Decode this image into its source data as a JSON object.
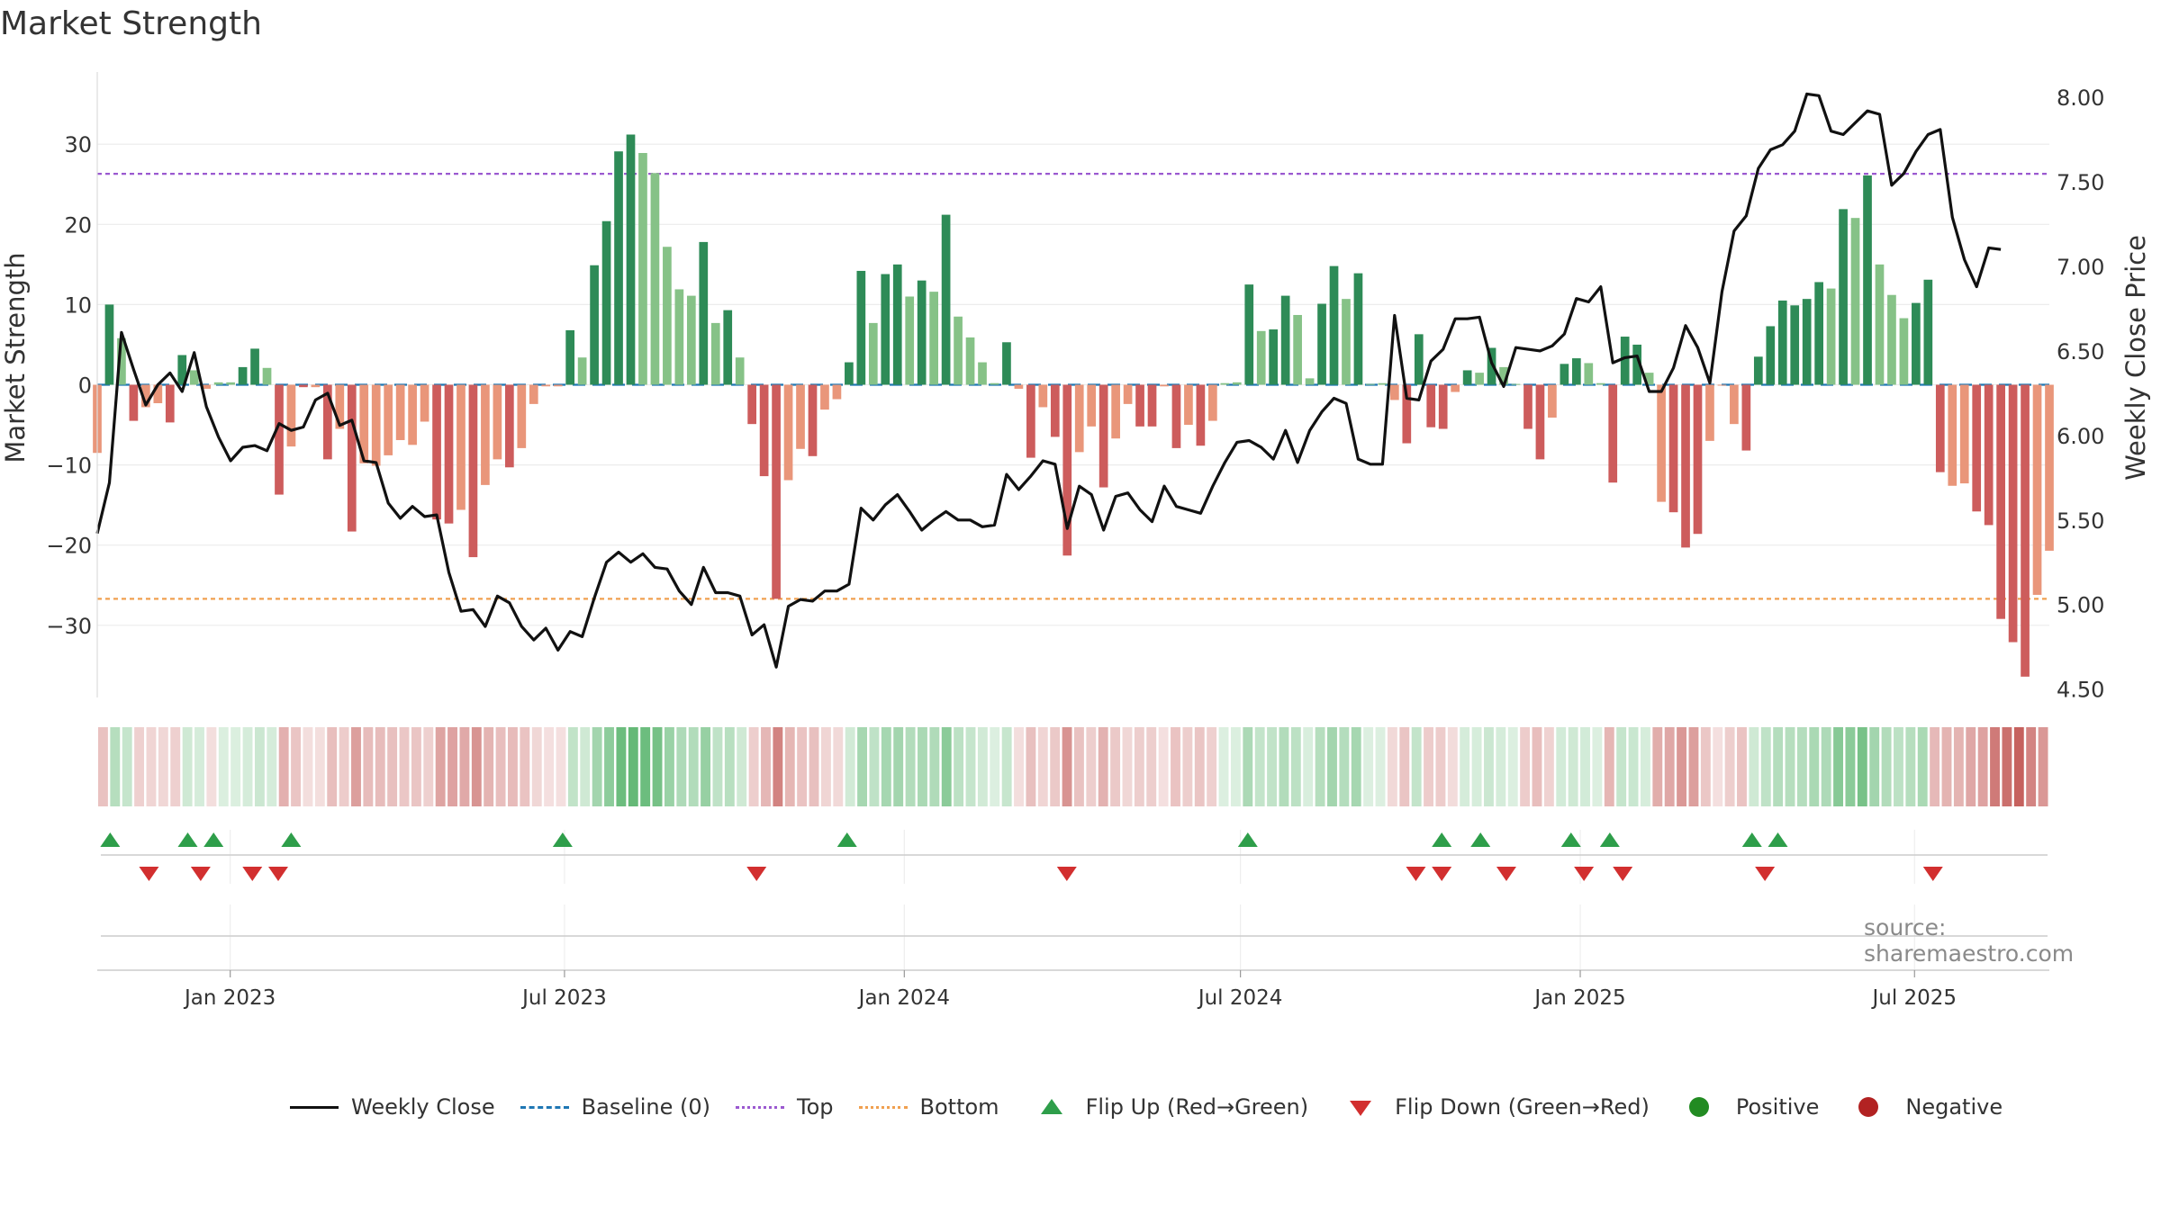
{
  "chart_data": {
    "type": "bar",
    "title": "Market Strength",
    "ylabel": "Market Strength",
    "ylabel_right": "Weekly Close Price",
    "ylim": [
      -39,
      39
    ],
    "ylim_right": [
      4.45,
      8.15
    ],
    "yticks": [
      -30,
      -20,
      -10,
      0,
      10,
      20,
      30
    ],
    "yticks_right": [
      4.5,
      5.0,
      5.5,
      6.0,
      6.5,
      7.0,
      7.5,
      8.0
    ],
    "ytick_labels": [
      "−30",
      "−20",
      "−10",
      "0",
      "10",
      "20",
      "30"
    ],
    "ytick_labels_right": [
      "4.50",
      "5.00",
      "5.50",
      "6.00",
      "6.50",
      "7.00",
      "7.50",
      "8.00"
    ],
    "x_start": "2022-10-21",
    "x_end": "2025-09-12",
    "x_ticks": [
      "2023-01-01",
      "2023-07-01",
      "2024-01-01",
      "2024-07-01",
      "2025-01-01",
      "2025-07-01"
    ],
    "x_tick_labels": [
      "Jan 2023",
      "Jul 2023",
      "Jan 2024",
      "Jul 2024",
      "Jan 2025",
      "Jul 2025"
    ],
    "top_level": 26.3,
    "bottom_level": -26.7,
    "baseline": 0,
    "strength": [
      -8.5,
      10,
      5.8,
      -4.5,
      -2.8,
      -2.3,
      -4.7,
      3.7,
      1.8,
      -0.5,
      0.3,
      0.3,
      2.2,
      4.5,
      2.1,
      -13.7,
      -7.7,
      -0.3,
      -0.3,
      -9.3,
      -5.5,
      -18.3,
      -9.8,
      -10.1,
      -8.8,
      -6.9,
      -7.5,
      -4.6,
      -16.8,
      -17.3,
      -15.6,
      -21.5,
      -12.5,
      -9.3,
      -10.3,
      -7.9,
      -2.4,
      -0.2,
      -0.2,
      6.8,
      3.4,
      14.9,
      20.4,
      29.1,
      31.2,
      28.9,
      26.4,
      17.2,
      11.9,
      11.1,
      17.8,
      7.7,
      9.3,
      3.4,
      -4.9,
      -11.4,
      -26.7,
      -11.9,
      -8.0,
      -8.9,
      -3.1,
      -1.8,
      2.8,
      14.2,
      7.7,
      13.8,
      15.0,
      11.0,
      13.0,
      11.6,
      21.2,
      8.5,
      5.9,
      2.8,
      0.2,
      5.3,
      -0.5,
      -9.1,
      -2.8,
      -6.5,
      -21.3,
      -8.4,
      -5.2,
      -12.8,
      -6.7,
      -2.4,
      -5.2,
      -5.2,
      -0.2,
      -7.9,
      -5.0,
      -7.6,
      -4.5,
      0.2,
      0.3,
      12.5,
      6.7,
      6.9,
      11.1,
      8.7,
      0.8,
      10.1,
      14.8,
      10.7,
      13.9,
      0.1,
      0.2,
      -1.9,
      -7.3,
      6.3,
      -5.3,
      -5.5,
      -0.9,
      1.8,
      1.5,
      4.6,
      2.2,
      0.1,
      -5.5,
      -9.3,
      -4.1,
      2.6,
      3.3,
      2.7,
      0.2,
      -12.2,
      6.0,
      5.0,
      1.5,
      -14.6,
      -15.9,
      -20.3,
      -18.6,
      -7.0,
      -0.1,
      -4.9,
      -8.2,
      3.5,
      7.3,
      10.5,
      9.9,
      10.7,
      12.8,
      12.0,
      21.9,
      20.8,
      26.1,
      15.0,
      11.2,
      8.3,
      10.2,
      13.1,
      -10.9,
      -12.6,
      -12.3,
      -15.8,
      -17.5,
      -29.2,
      -32.1,
      -36.4,
      -26.2,
      -20.7
    ],
    "shade": [
      0,
      1,
      0,
      1,
      0,
      0,
      1,
      1,
      0,
      0,
      0,
      0,
      1,
      1,
      0,
      1,
      0,
      1,
      0,
      1,
      0,
      1,
      0,
      0,
      0,
      0,
      0,
      0,
      1,
      1,
      0,
      1,
      0,
      0,
      1,
      0,
      0,
      0,
      0,
      1,
      0,
      1,
      1,
      1,
      1,
      0,
      0,
      0,
      0,
      0,
      1,
      0,
      1,
      0,
      1,
      1,
      1,
      0,
      0,
      1,
      0,
      0,
      1,
      1,
      0,
      1,
      1,
      0,
      1,
      0,
      1,
      0,
      0,
      0,
      0,
      1,
      0,
      1,
      0,
      1,
      1,
      0,
      0,
      1,
      0,
      0,
      1,
      1,
      0,
      1,
      0,
      1,
      0,
      0,
      0,
      1,
      0,
      1,
      1,
      0,
      0,
      1,
      1,
      0,
      1,
      0,
      0,
      0,
      1,
      1,
      1,
      1,
      0,
      1,
      0,
      1,
      0,
      0,
      1,
      1,
      0,
      1,
      1,
      0,
      0,
      1,
      1,
      1,
      0,
      0,
      1,
      1,
      1,
      0,
      0,
      0,
      1,
      1,
      1,
      1,
      1,
      1,
      1,
      0,
      1,
      0,
      1,
      0,
      0,
      0,
      1,
      1,
      1,
      0,
      0,
      1,
      1,
      1,
      1,
      1,
      0,
      0
    ],
    "close": [
      5.42,
      5.72,
      6.61,
      6.39,
      6.18,
      6.3,
      6.37,
      6.26,
      6.49,
      6.17,
      5.99,
      5.85,
      5.93,
      5.94,
      5.91,
      6.07,
      6.03,
      6.05,
      6.21,
      6.25,
      6.06,
      6.09,
      5.85,
      5.84,
      5.6,
      5.51,
      5.58,
      5.52,
      5.53,
      5.19,
      4.96,
      4.97,
      4.87,
      5.05,
      5.01,
      4.87,
      4.79,
      4.86,
      4.73,
      4.84,
      4.81,
      5.04,
      5.25,
      5.31,
      5.25,
      5.3,
      5.22,
      5.21,
      5.08,
      5.0,
      5.22,
      5.07,
      5.07,
      5.05,
      4.82,
      4.88,
      4.63,
      4.99,
      5.03,
      5.02,
      5.08,
      5.08,
      5.12,
      5.57,
      5.5,
      5.59,
      5.65,
      5.55,
      5.44,
      5.5,
      5.55,
      5.5,
      5.5,
      5.46,
      5.47,
      5.77,
      5.68,
      5.76,
      5.85,
      5.83,
      5.45,
      5.7,
      5.65,
      5.44,
      5.64,
      5.66,
      5.56,
      5.49,
      5.7,
      5.58,
      5.56,
      5.54,
      5.7,
      5.84,
      5.96,
      5.97,
      5.93,
      5.86,
      6.03,
      5.84,
      6.03,
      6.14,
      6.22,
      6.19,
      5.86,
      5.83,
      5.83,
      6.71,
      6.22,
      6.21,
      6.44,
      6.51,
      6.69,
      6.69,
      6.7,
      6.43,
      6.29,
      6.52,
      6.51,
      6.5,
      6.53,
      6.6,
      6.81,
      6.79,
      6.88,
      6.43,
      6.46,
      6.47,
      6.26,
      6.26,
      6.4,
      6.65,
      6.52,
      6.31,
      6.85,
      7.21,
      7.3,
      7.58,
      7.69,
      7.72,
      7.8,
      8.02,
      8.01,
      7.8,
      7.78,
      7.85,
      7.92,
      7.9,
      7.48,
      7.55,
      7.68,
      7.78,
      7.81,
      7.29,
      7.04,
      6.88,
      7.11,
      7.1
    ],
    "flip_up_dates": [
      "2022-10-28",
      "2022-12-09",
      "2022-12-23",
      "2023-02-03",
      "2023-06-30",
      "2023-12-01",
      "2024-07-05",
      "2024-10-18",
      "2024-11-08",
      "2024-12-27",
      "2025-01-17",
      "2025-04-04",
      "2025-04-18"
    ],
    "flip_down_dates": [
      "2022-11-18",
      "2022-12-16",
      "2023-01-13",
      "2023-01-27",
      "2023-10-13",
      "2024-03-29",
      "2024-10-04",
      "2024-10-18",
      "2024-11-22",
      "2025-01-03",
      "2025-01-24",
      "2025-04-11",
      "2025-07-11"
    ]
  },
  "legend": [
    {
      "label": "Weekly Close",
      "symbol": "line",
      "color": "#111111",
      "dash": ""
    },
    {
      "label": "Baseline (0)",
      "symbol": "line",
      "color": "#1f77b4",
      "dash": "14 8"
    },
    {
      "label": "Top",
      "symbol": "line",
      "color": "#9b59d0",
      "dash": "4 4"
    },
    {
      "label": "Bottom",
      "symbol": "line",
      "color": "#f0a050",
      "dash": "4 4"
    },
    {
      "label": "Flip Up (Red→Green)",
      "symbol": "tri-up",
      "color": "#2e9e4a"
    },
    {
      "label": "Flip Down (Green→Red)",
      "symbol": "tri-down",
      "color": "#d22f2f"
    },
    {
      "label": "Positive",
      "symbol": "dot",
      "color": "#228b22"
    },
    {
      "label": "Negative",
      "symbol": "dot",
      "color": "#b22222"
    }
  ],
  "source": "source: sharemaestro.com",
  "colors": {
    "pos_dark": "#2e8b57",
    "pos_light": "#86c287",
    "neg_dark": "#cd5c5c",
    "neg_light": "#e9967a",
    "close_line": "#111111",
    "baseline": "#1f77b4",
    "top": "#9b59d0",
    "bottom": "#f0a050",
    "flip_up": "#2e9e4a",
    "flip_down": "#d22f2f"
  }
}
